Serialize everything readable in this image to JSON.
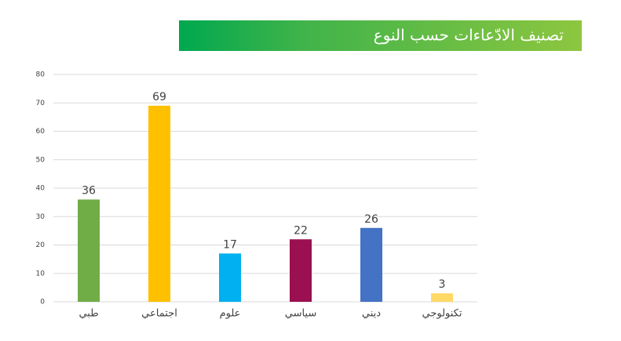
{
  "chart_data": {
    "type": "bar",
    "title": "تصنيف الادّعاءات حسب النوع",
    "categories": [
      "طبي",
      "اجتماعي",
      "علوم",
      "سياسي",
      "ديني",
      "تكنولوجي"
    ],
    "values": [
      36,
      69,
      17,
      22,
      26,
      3
    ],
    "colors": [
      "#70ad47",
      "#ffc000",
      "#00b0f0",
      "#9b1050",
      "#4472c4",
      "#ffd966"
    ],
    "ylim": [
      0,
      80
    ],
    "yticks": [
      0,
      10,
      20,
      30,
      40,
      50,
      60,
      70,
      80
    ],
    "grid": true
  }
}
